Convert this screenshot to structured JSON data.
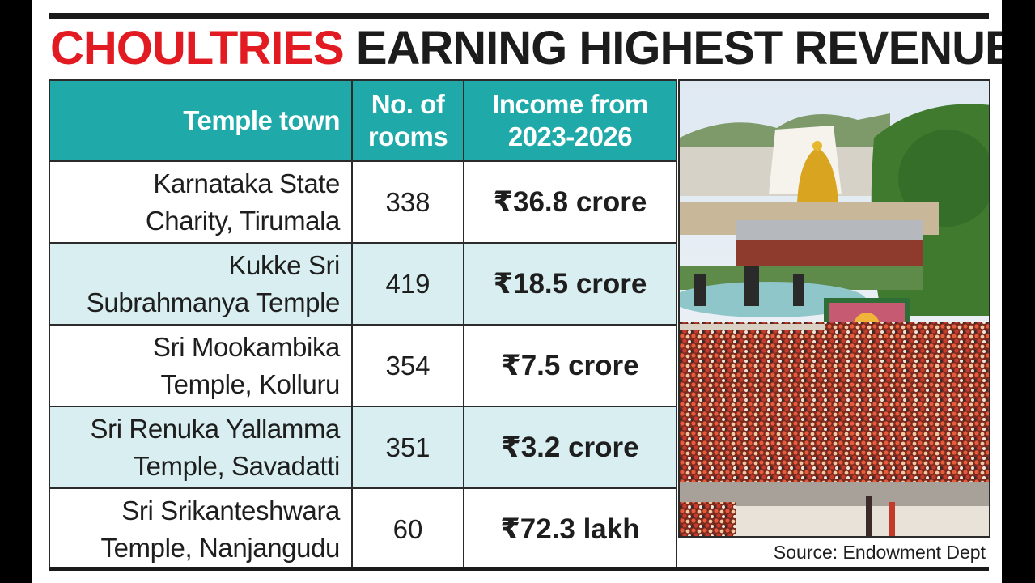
{
  "title": {
    "part1": "CHOULTRIES",
    "part2": "EARNING HIGHEST REVENUE"
  },
  "colors": {
    "title_red": "#e21b22",
    "header_teal": "#1faaa9",
    "row_alt": "#d8eef0"
  },
  "chart_data": {
    "type": "table",
    "columns": [
      "Temple town",
      "No. of rooms",
      "Income from 2023-2026"
    ],
    "header_lines": {
      "town": [
        "Temple town"
      ],
      "rooms": [
        "No. of",
        "rooms"
      ],
      "income": [
        "Income from",
        "2023-2026"
      ]
    },
    "rows": [
      {
        "town_lines": [
          "Karnataka State",
          "Charity, Tirumala"
        ],
        "rooms": "338",
        "income": "₹36.8 crore"
      },
      {
        "town_lines": [
          "Kukke Sri",
          "Subrahmanya Temple"
        ],
        "rooms": "419",
        "income": "₹18.5 crore"
      },
      {
        "town_lines": [
          "Sri Mookambika",
          "Temple, Kolluru"
        ],
        "rooms": "354",
        "income": "₹7.5 crore"
      },
      {
        "town_lines": [
          "Sri Renuka Yallamma",
          "Temple, Savadatti"
        ],
        "rooms": "351",
        "income": "₹3.2 crore"
      },
      {
        "town_lines": [
          "Sri Srikanteshwara",
          "Temple, Nanjangudu"
        ],
        "rooms": "60",
        "income": "₹72.3 lakh"
      }
    ]
  },
  "source": "Source: Endowment Dept"
}
